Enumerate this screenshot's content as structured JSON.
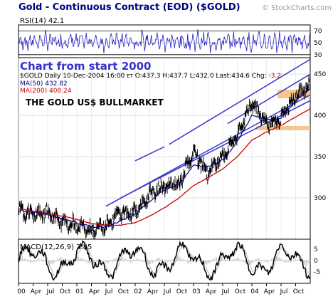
{
  "header": {
    "title": "Gold - Continuous Contract (EOD) ($GOLD)",
    "watermark": "© StockCharts.com"
  },
  "rsi": {
    "label": "RSI(14) 42.1",
    "levels": [
      70,
      50,
      30
    ]
  },
  "price": {
    "headline": "Chart from start 2000",
    "info_line": "$GOLD Daily 10-Dec-2004 16:00",
    "info_et": "ET",
    "info_values": "O:437.3 H:437.7 L:432.0 Last:434.6 Chg:",
    "info_change": "-3.2",
    "ma50_label": "MA(50) 432.82",
    "ma200_label": "MA(200) 408.24",
    "annotation": "THE GOLD US$ BULLMARKET",
    "y_ticks": [
      450,
      400,
      350,
      300
    ]
  },
  "macd": {
    "label": "MACD(12,26,9) 2.85",
    "y_ticks": [
      "5",
      "0",
      "-5"
    ]
  },
  "x_axis": {
    "ticks": [
      "00",
      "Apr",
      "Jul",
      "Oct",
      "01",
      "Apr",
      "Jul",
      "Oct",
      "02",
      "Apr",
      "Jul",
      "Oct",
      "03",
      "Apr",
      "Jul",
      "Oct",
      "04",
      "Apr",
      "Jul",
      "Oct"
    ]
  },
  "colors": {
    "title": "#000080",
    "headline": "#3333cc",
    "price_line": "#000000",
    "ma50": "#000080",
    "ma200": "#cc0000",
    "channel": "#4040d0",
    "band": "#f5c78a",
    "rsi_line": "#2020c0",
    "macd": "#000000",
    "grid": "#e0e0e0"
  },
  "chart_data": [
    {
      "type": "line",
      "title": "",
      "series": [
        {
          "name": "RSI(14)",
          "last": 42.1
        }
      ],
      "x": [
        "2000-01",
        "2000-04",
        "2000-07",
        "2000-10",
        "2001-01",
        "2001-04",
        "2001-07",
        "2001-10",
        "2002-01",
        "2002-04",
        "2002-07",
        "2002-10",
        "2003-01",
        "2003-04",
        "2003-07",
        "2003-10",
        "2004-01",
        "2004-04",
        "2004-07",
        "2004-10",
        "2004-12"
      ],
      "ylim": [
        30,
        70
      ]
    },
    {
      "type": "line",
      "title": "Chart from start 2000",
      "ylim": [
        250,
        470
      ],
      "x": [
        "2000-01",
        "2000-04",
        "2000-07",
        "2000-10",
        "2001-01",
        "2001-04",
        "2001-07",
        "2001-10",
        "2002-01",
        "2002-04",
        "2002-07",
        "2002-10",
        "2003-01",
        "2003-04",
        "2003-07",
        "2003-10",
        "2004-01",
        "2004-04",
        "2004-07",
        "2004-10",
        "2004-12"
      ],
      "series": [
        {
          "name": "$GOLD",
          "values": [
            285,
            280,
            282,
            270,
            268,
            260,
            268,
            282,
            282,
            305,
            315,
            318,
            355,
            330,
            350,
            375,
            415,
            390,
            395,
            425,
            434.6
          ]
        },
        {
          "name": "MA(50)",
          "values": [
            285,
            283,
            280,
            275,
            270,
            265,
            265,
            272,
            280,
            296,
            310,
            316,
            340,
            338,
            346,
            368,
            400,
            395,
            396,
            418,
            432.82
          ]
        },
        {
          "name": "MA(200)",
          "values": [
            287,
            284,
            281,
            278,
            274,
            269,
            267,
            267,
            270,
            278,
            288,
            300,
            315,
            325,
            335,
            350,
            370,
            380,
            388,
            398,
            408.24
          ]
        }
      ],
      "last": {
        "open": 437.3,
        "high": 437.7,
        "low": 432.0,
        "last": 434.6,
        "change": -3.2
      }
    },
    {
      "type": "line",
      "title": "MACD(12,26,9)",
      "series": [
        {
          "name": "MACD(12,26,9)",
          "last": 2.85
        }
      ],
      "ylim": [
        -8,
        8
      ]
    }
  ]
}
